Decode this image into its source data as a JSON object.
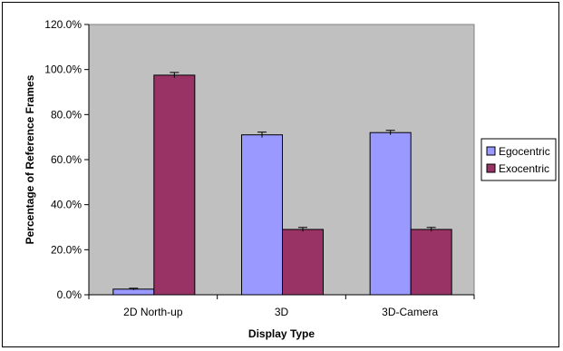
{
  "chart_data": {
    "type": "bar",
    "title": "",
    "xlabel": "Display Type",
    "ylabel": "Percentage of Reference Frames",
    "categories": [
      "2D North-up",
      "3D",
      "3D-Camera"
    ],
    "series": [
      {
        "name": "Egocentric",
        "values": [
          2.5,
          71.0,
          72.0
        ],
        "errors": [
          0.4,
          1.2,
          1.0
        ],
        "color": "#9999ff"
      },
      {
        "name": "Exocentric",
        "values": [
          97.5,
          29.0,
          29.0
        ],
        "errors": [
          1.2,
          0.9,
          0.9
        ],
        "color": "#993366"
      }
    ],
    "ylim": [
      0,
      120
    ],
    "yticks": [
      0,
      20,
      40,
      60,
      80,
      100,
      120
    ],
    "ytick_labels": [
      "0.0%",
      "20.0%",
      "40.0%",
      "60.0%",
      "80.0%",
      "100.0%",
      "120.0%"
    ],
    "grid": false,
    "plot_background": "#c0c0c0",
    "legend_position": "right"
  }
}
